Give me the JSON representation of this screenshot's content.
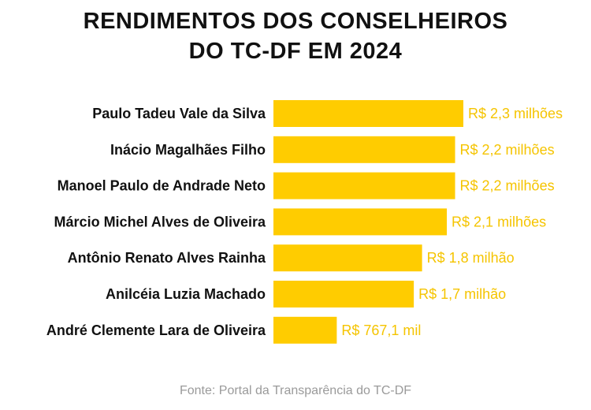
{
  "title_lines": [
    "RENDIMENTOS DOS CONSELHEIROS",
    "DO TC-DF EM 2024"
  ],
  "source": "Fonte: Portal da Transparência do TC-DF",
  "colors": {
    "bar": "#FFCC00",
    "value_label": "#F5C400",
    "name_label": "#111111",
    "source": "#9a9a9a"
  },
  "chart_data": {
    "type": "bar",
    "orientation": "horizontal",
    "title": "RENDIMENTOS DOS CONSELHEIROS DO TC-DF EM 2024",
    "categories": [
      "Paulo Tadeu Vale da Silva",
      "Inácio Magalhães Filho",
      "Manoel Paulo de Andrade Neto",
      "Márcio Michel Alves de Oliveira",
      "Antônio Renato Alves Rainha",
      "Anilcéia Luzia Machado",
      "André Clemente Lara de Oliveira"
    ],
    "values": [
      2300000,
      2200000,
      2200000,
      2100000,
      1800000,
      1700000,
      767100
    ],
    "value_labels": [
      "R$ 2,3 milhões",
      "R$ 2,2 milhões",
      "R$ 2,2 milhões",
      "R$ 2,1 milhões",
      "R$ 1,8 milhão",
      "R$ 1,7 milhão",
      "R$ 767,1 mil"
    ],
    "xlim": [
      0,
      2300000
    ],
    "grid": false,
    "legend": "none"
  }
}
